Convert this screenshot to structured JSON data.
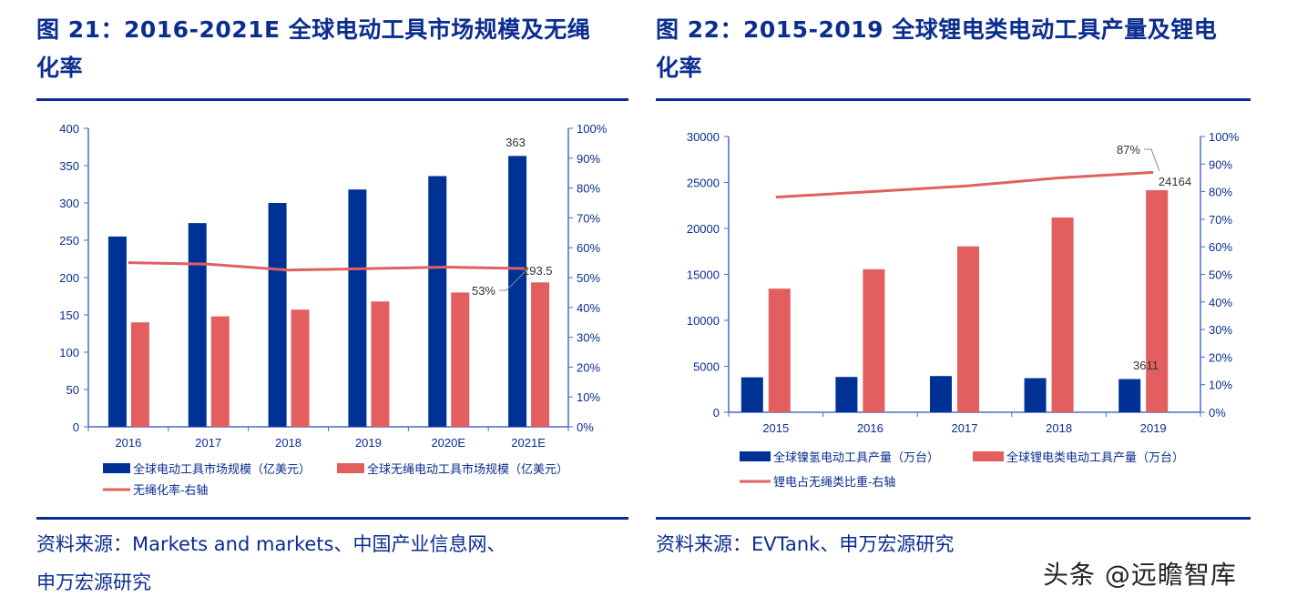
{
  "colors": {
    "primary": "#0a2d8f",
    "bar_blue": "#003296",
    "bar_red": "#e35f5f",
    "line_red": "#e35f5f",
    "axis": "#4a6cc8",
    "label": "#333333"
  },
  "chart_data": [
    {
      "type": "bar+line",
      "title": "图 21：2016-2021E 全球电动工具市场规模及无绳化率",
      "categories": [
        "2016",
        "2017",
        "2018",
        "2019",
        "2020E",
        "2021E"
      ],
      "ylim": [
        0,
        400
      ],
      "yticks": [
        "0",
        "50",
        "100",
        "150",
        "200",
        "250",
        "300",
        "350",
        "400"
      ],
      "y2lim": [
        0,
        100
      ],
      "y2ticks": [
        "0%",
        "10%",
        "20%",
        "30%",
        "40%",
        "50%",
        "60%",
        "70%",
        "80%",
        "90%",
        "100%"
      ],
      "series": [
        {
          "name": "全球电动工具市场规模（亿美元）",
          "type": "bar",
          "axis": "left",
          "color": "#003296",
          "values": [
            255,
            273,
            300,
            318,
            336,
            363
          ]
        },
        {
          "name": "全球无绳电动工具市场规模（亿美元）",
          "type": "bar",
          "axis": "left",
          "color": "#e35f5f",
          "values": [
            140,
            148,
            157,
            168,
            180,
            193.5
          ]
        },
        {
          "name": "无绳化率-右轴",
          "type": "line",
          "axis": "right",
          "color": "#e35f5f",
          "values": [
            55,
            54.5,
            52.5,
            53,
            53.5,
            53
          ]
        }
      ],
      "data_labels": [
        "363",
        "193.5",
        "53%"
      ],
      "legend": "bottom",
      "grid": false
    },
    {
      "type": "bar+line",
      "title": "图 22：2015-2019 全球锂电类电动工具产量及锂电化率",
      "categories": [
        "2015",
        "2016",
        "2017",
        "2018",
        "2019"
      ],
      "ylim": [
        0,
        30000
      ],
      "yticks": [
        "0",
        "5000",
        "10000",
        "15000",
        "20000",
        "25000",
        "30000"
      ],
      "y2lim": [
        0,
        100
      ],
      "y2ticks": [
        "0%",
        "10%",
        "20%",
        "30%",
        "40%",
        "50%",
        "60%",
        "70%",
        "80%",
        "90%",
        "100%"
      ],
      "series": [
        {
          "name": "全球镍氢电动工具产量（万台）",
          "type": "bar",
          "axis": "left",
          "color": "#003296",
          "values": [
            3800,
            3840,
            3940,
            3710,
            3611
          ]
        },
        {
          "name": "全球锂电类电动工具产量（万台）",
          "type": "bar",
          "axis": "left",
          "color": "#e35f5f",
          "values": [
            13450,
            15560,
            18050,
            21190,
            24164
          ]
        },
        {
          "name": "锂电占无绳类比重-右轴",
          "type": "line",
          "axis": "right",
          "color": "#e35f5f",
          "values": [
            78,
            80,
            82,
            85,
            87
          ]
        }
      ],
      "data_labels": [
        "87%",
        "24164",
        "3611"
      ],
      "legend": "bottom",
      "grid": false
    }
  ],
  "panels": [
    {
      "title_line1": "图 21：2016-2021E 全球电动工具市场规模及无绳",
      "title_line2": "化率",
      "source_line1": "资料来源：Markets and markets、中国产业信息网、",
      "source_line2": "申万宏源研究"
    },
    {
      "title_line1": "图 22：2015-2019 全球锂电类电动工具产量及锂电",
      "title_line2": "化率",
      "source_line1": "资料来源：EVTank、申万宏源研究"
    }
  ],
  "watermark": "头条 @远瞻智库"
}
